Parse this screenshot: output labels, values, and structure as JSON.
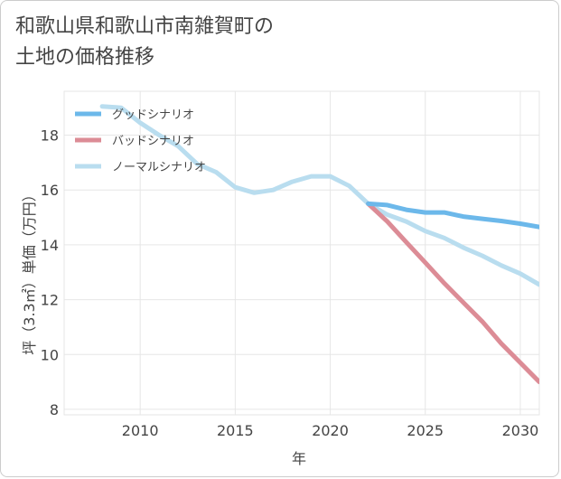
{
  "title_line1": "和歌山県和歌山市南雑賀町の",
  "title_line2": "土地の価格推移",
  "chart_data": {
    "type": "line",
    "xlabel": "年",
    "ylabel": "坪（3.3㎡）単価（万円）",
    "xlim": [
      2006,
      2031
    ],
    "ylim": [
      7.8,
      19.6
    ],
    "xticks": [
      2010,
      2015,
      2020,
      2025,
      2030
    ],
    "yticks": [
      8,
      10,
      12,
      14,
      16,
      18
    ],
    "grid": true,
    "legend_position": "top-left",
    "series": [
      {
        "name": "グッドシナリオ",
        "color": "#6cb8ea",
        "x": [
          2022,
          2023,
          2024,
          2025,
          2026,
          2027,
          2028,
          2029,
          2030,
          2031
        ],
        "y": [
          15.5,
          15.45,
          15.28,
          15.18,
          15.18,
          15.03,
          14.95,
          14.87,
          14.77,
          14.65
        ]
      },
      {
        "name": "バッドシナリオ",
        "color": "#dc8c96",
        "x": [
          2022,
          2023,
          2024,
          2025,
          2026,
          2027,
          2028,
          2029,
          2030,
          2031
        ],
        "y": [
          15.5,
          14.85,
          14.1,
          13.35,
          12.6,
          11.9,
          11.2,
          10.4,
          9.7,
          9.0
        ]
      },
      {
        "name": "ノーマルシナリオ",
        "color": "#b9ddef",
        "x": [
          2008,
          2009,
          2010,
          2011,
          2012,
          2013,
          2014,
          2015,
          2016,
          2017,
          2018,
          2019,
          2020,
          2021,
          2022,
          2023,
          2024,
          2025,
          2026,
          2027,
          2028,
          2029,
          2030,
          2031
        ],
        "y": [
          19.05,
          19.0,
          18.45,
          18.0,
          17.6,
          16.95,
          16.65,
          16.1,
          15.9,
          16.0,
          16.3,
          16.5,
          16.5,
          16.15,
          15.5,
          15.1,
          14.85,
          14.5,
          14.25,
          13.9,
          13.6,
          13.25,
          12.95,
          12.55
        ]
      }
    ]
  }
}
